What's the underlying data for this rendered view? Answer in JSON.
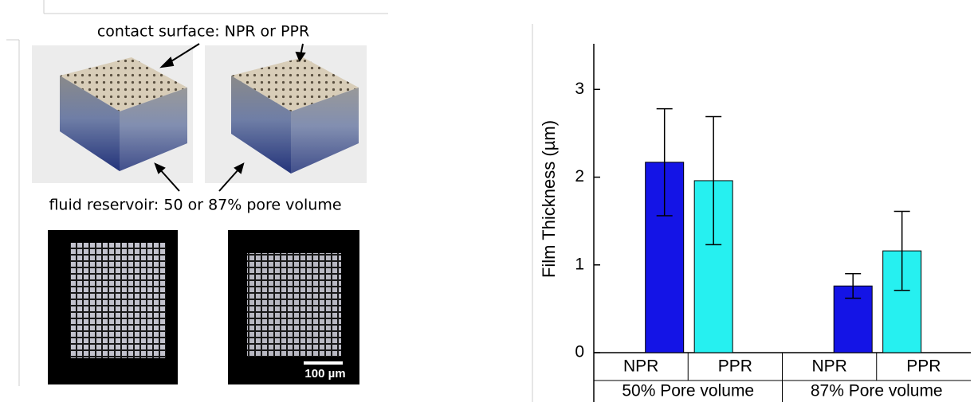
{
  "figure": {
    "annotations": [
      "contact surface: NPR or PPR",
      "fluid reservoir: 50 or 87% pore volume"
    ],
    "scale_bar": "100 µm"
  },
  "chart_data": {
    "type": "bar",
    "y_label": "Film Thickness (µm)",
    "categories": [
      "50% Pore volume",
      "87% Pore volume"
    ],
    "series": [
      {
        "name": "NPR",
        "color": "#1414e6",
        "values": [
          2.17,
          0.76
        ],
        "errors": [
          0.61,
          0.14
        ]
      },
      {
        "name": "PPR",
        "color": "#26f0f0",
        "values": [
          1.96,
          1.16
        ],
        "errors": [
          0.73,
          0.45
        ]
      }
    ],
    "ylim": [
      0,
      3.52
    ],
    "yticks": [
      0,
      1,
      2,
      3
    ]
  }
}
